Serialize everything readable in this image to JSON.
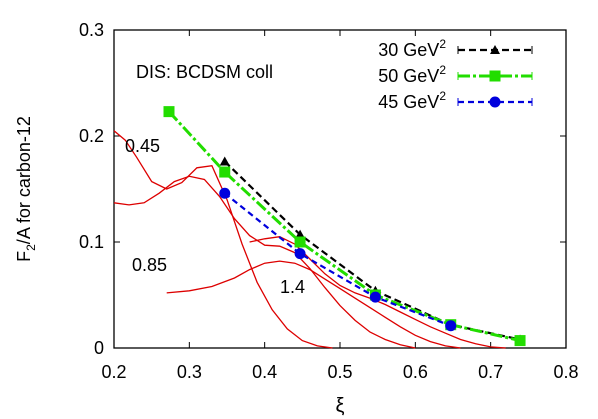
{
  "chart_data": {
    "type": "line",
    "annotation": "DIS: BCDSM coll",
    "xlabel": "ξ",
    "ylabel_main": "F",
    "ylabel_sub": "2",
    "ylabel_rest": "/A   for  carbon-12",
    "xlim": [
      0.2,
      0.8
    ],
    "ylim": [
      0,
      0.3
    ],
    "x_ticks": [
      "0.2",
      "0.3",
      "0.4",
      "0.5",
      "0.6",
      "0.7",
      "0.8"
    ],
    "y_ticks": [
      "0",
      "0.1",
      "0.2",
      "0.3"
    ],
    "legend": {
      "placement": "top-right",
      "unit": "GeV",
      "sup": "2"
    },
    "series": [
      {
        "name": "30",
        "color": "#000000",
        "marker": "triangle",
        "x": [
          0.347,
          0.447,
          0.547,
          0.647,
          0.739
        ],
        "y": [
          0.176,
          0.107,
          0.054,
          0.022,
          0.008
        ]
      },
      {
        "name": "50",
        "color": "#22dd00",
        "marker": "square",
        "x": [
          0.273,
          0.347,
          0.447,
          0.547,
          0.647,
          0.739
        ],
        "y": [
          0.223,
          0.166,
          0.1,
          0.05,
          0.022,
          0.007
        ]
      },
      {
        "name": "45",
        "color": "#0000dd",
        "marker": "circle",
        "x": [
          0.347,
          0.447,
          0.547,
          0.647
        ],
        "y": [
          0.146,
          0.089,
          0.048,
          0.021
        ]
      }
    ],
    "curves": [
      {
        "label": "0.45",
        "color": "#dd0000",
        "x": [
          0.2,
          0.215,
          0.23,
          0.25,
          0.27,
          0.29,
          0.31,
          0.33,
          0.35,
          0.37,
          0.39,
          0.41,
          0.43,
          0.45,
          0.47,
          0.49
        ],
        "y": [
          0.205,
          0.196,
          0.18,
          0.157,
          0.15,
          0.156,
          0.17,
          0.172,
          0.14,
          0.098,
          0.062,
          0.036,
          0.018,
          0.007,
          0.002,
          0.0
        ]
      },
      {
        "label": "0.85",
        "color": "#dd0000",
        "x": [
          0.2,
          0.22,
          0.24,
          0.26,
          0.28,
          0.3,
          0.32,
          0.34,
          0.36,
          0.38,
          0.4,
          0.42,
          0.44,
          0.46,
          0.48,
          0.5,
          0.52,
          0.54,
          0.56,
          0.58,
          0.6
        ],
        "y": [
          0.137,
          0.135,
          0.137,
          0.146,
          0.157,
          0.162,
          0.159,
          0.143,
          0.122,
          0.106,
          0.097,
          0.096,
          0.09,
          0.075,
          0.057,
          0.04,
          0.026,
          0.015,
          0.008,
          0.003,
          0.0
        ]
      },
      {
        "label": "1.4",
        "color": "#dd0000",
        "x": [
          0.27,
          0.3,
          0.33,
          0.36,
          0.38,
          0.4,
          0.42,
          0.44,
          0.46,
          0.48,
          0.5,
          0.52,
          0.54,
          0.56,
          0.58,
          0.6,
          0.62,
          0.64,
          0.66
        ],
        "y": [
          0.052,
          0.054,
          0.058,
          0.066,
          0.074,
          0.08,
          0.082,
          0.08,
          0.074,
          0.065,
          0.056,
          0.047,
          0.038,
          0.029,
          0.02,
          0.012,
          0.006,
          0.002,
          0.0
        ]
      },
      {
        "label": "",
        "color": "#dd0000",
        "x": [
          0.38,
          0.4,
          0.42,
          0.44,
          0.46,
          0.48,
          0.5,
          0.52,
          0.54,
          0.56,
          0.58,
          0.6,
          0.62,
          0.64,
          0.66,
          0.68,
          0.7,
          0.72
        ],
        "y": [
          0.1,
          0.103,
          0.105,
          0.098,
          0.084,
          0.07,
          0.059,
          0.052,
          0.047,
          0.041,
          0.034,
          0.027,
          0.02,
          0.014,
          0.008,
          0.004,
          0.001,
          0.0
        ]
      }
    ]
  }
}
